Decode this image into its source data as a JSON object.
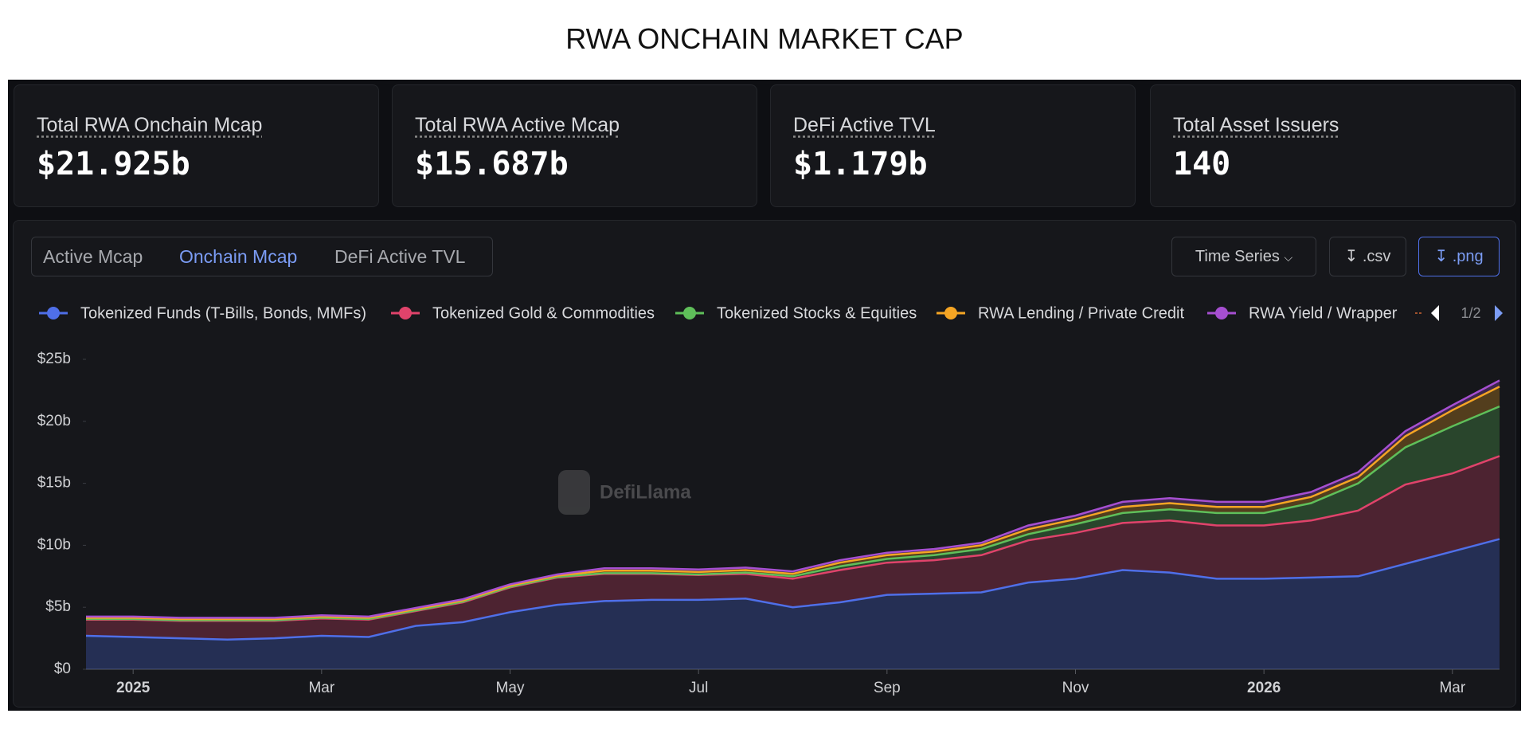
{
  "header": {
    "title": "RWA ONCHAIN MARKET CAP"
  },
  "stats": [
    {
      "label": "Total RWA Onchain Mcap",
      "value": "$21.925b"
    },
    {
      "label": "Total RWA Active Mcap",
      "value": "$15.687b"
    },
    {
      "label": "DeFi Active TVL",
      "value": "$1.179b"
    },
    {
      "label": "Total Asset Issuers",
      "value": "140"
    }
  ],
  "tabs": [
    "Active Mcap",
    "Onchain Mcap",
    "DeFi Active TVL"
  ],
  "controls": {
    "view": "Time Series",
    "csv": ".csv",
    "png": ".png"
  },
  "legend_page": "1/2",
  "watermark": "DefiLlama",
  "chart_data": {
    "type": "area",
    "stacked": true,
    "grid": false,
    "categories": [
      null,
      "2025",
      null,
      null,
      null,
      "Mar",
      null,
      null,
      null,
      "May",
      null,
      null,
      null,
      "Jul",
      null,
      null,
      null,
      "Sep",
      null,
      null,
      null,
      "Nov",
      null,
      null,
      null,
      "2026",
      null,
      null,
      null,
      "Mar",
      null
    ],
    "series": [
      {
        "name": "Tokenized Funds (T-Bills, Bonds, MMFs)",
        "color": "#4f6fe8",
        "values": [
          2.7,
          2.6,
          2.5,
          2.4,
          2.5,
          2.7,
          2.6,
          3.5,
          3.8,
          4.6,
          5.2,
          5.5,
          5.6,
          5.6,
          5.7,
          5.0,
          5.4,
          6.0,
          6.1,
          6.2,
          7.0,
          7.3,
          8.0,
          7.8,
          7.3,
          7.3,
          7.4,
          7.5,
          8.5,
          9.5,
          10.5
        ]
      },
      {
        "name": "Tokenized Gold & Commodities",
        "color": "#e0436b",
        "values": [
          1.3,
          1.4,
          1.4,
          1.5,
          1.4,
          1.4,
          1.4,
          1.2,
          1.6,
          2.0,
          2.2,
          2.2,
          2.1,
          2.0,
          2.0,
          2.3,
          2.6,
          2.6,
          2.7,
          3.0,
          3.4,
          3.7,
          3.8,
          4.2,
          4.3,
          4.3,
          4.6,
          5.3,
          6.4,
          6.3,
          6.7
        ]
      },
      {
        "name": "Tokenized Stocks & Equities",
        "color": "#5fbf5a",
        "values": [
          0.05,
          0.05,
          0.05,
          0.05,
          0.05,
          0.05,
          0.05,
          0.05,
          0.05,
          0.05,
          0.05,
          0.05,
          0.05,
          0.05,
          0.1,
          0.2,
          0.3,
          0.3,
          0.4,
          0.5,
          0.5,
          0.7,
          0.8,
          0.9,
          1.0,
          1.0,
          1.4,
          2.2,
          3.0,
          3.8,
          4.0
        ]
      },
      {
        "name": "RWA Lending / Private Credit",
        "color": "#f5a524",
        "values": [
          0.1,
          0.1,
          0.1,
          0.1,
          0.1,
          0.1,
          0.1,
          0.1,
          0.1,
          0.1,
          0.1,
          0.2,
          0.2,
          0.2,
          0.2,
          0.2,
          0.3,
          0.3,
          0.3,
          0.3,
          0.4,
          0.4,
          0.5,
          0.5,
          0.5,
          0.5,
          0.5,
          0.5,
          0.9,
          1.3,
          1.6
        ]
      },
      {
        "name": "RWA Yield / Wrapper",
        "color": "#a64fd1",
        "values": [
          0.1,
          0.1,
          0.1,
          0.1,
          0.1,
          0.1,
          0.1,
          0.1,
          0.1,
          0.1,
          0.1,
          0.2,
          0.2,
          0.2,
          0.2,
          0.2,
          0.2,
          0.2,
          0.2,
          0.2,
          0.3,
          0.3,
          0.4,
          0.4,
          0.4,
          0.4,
          0.4,
          0.4,
          0.4,
          0.4,
          0.5
        ]
      }
    ],
    "ylim": [
      0,
      25
    ],
    "yticks": [
      {
        "value": 0,
        "label": "$0"
      },
      {
        "value": 5,
        "label": "$5b"
      },
      {
        "value": 10,
        "label": "$10b"
      },
      {
        "value": 15,
        "label": "$15b"
      },
      {
        "value": 20,
        "label": "$20b"
      },
      {
        "value": 25,
        "label": "$25b"
      }
    ]
  }
}
